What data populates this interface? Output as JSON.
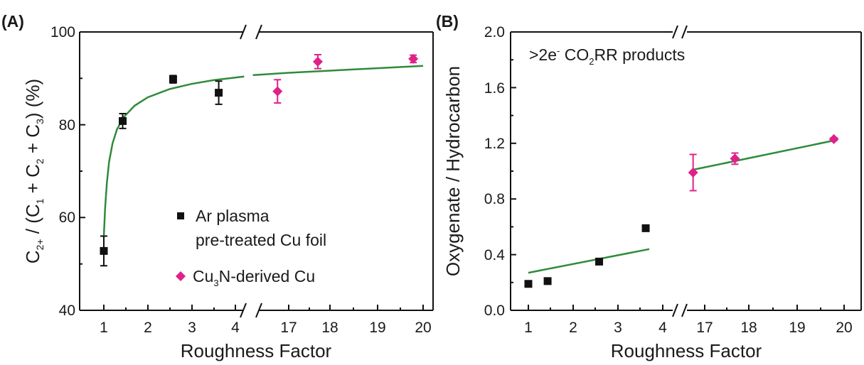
{
  "chart_data": [
    {
      "panel": "(A)",
      "type": "scatter",
      "xlabel": "Roughness Factor",
      "ylabel": "C2+ / (C1 + C2 + C3)  (%)",
      "ylabel_parts": [
        "C",
        "2+",
        " / (C",
        "1",
        " + C",
        "2",
        " + C",
        "3",
        ")  (%)"
      ],
      "x_axis_broken": true,
      "x_segments": [
        {
          "xlim": [
            0.6,
            4.25
          ],
          "ticks": [
            "1",
            "2",
            "3",
            "4"
          ]
        },
        {
          "xlim": [
            16.2,
            20.3
          ],
          "ticks": [
            "17",
            "18",
            "19",
            "20"
          ]
        }
      ],
      "ylim": [
        40,
        100
      ],
      "yticks": [
        "40",
        "60",
        "80",
        "100"
      ],
      "series": [
        {
          "name": "Ar plasma pre-treated Cu foil",
          "color": "#111111",
          "marker": "square",
          "points": [
            {
              "x": 1.0,
              "y": 52.8,
              "err": 3.2
            },
            {
              "x": 1.43,
              "y": 80.8,
              "err": 1.6
            },
            {
              "x": 2.58,
              "y": 89.8,
              "err": 0.8
            },
            {
              "x": 3.62,
              "y": 86.9,
              "err": 2.5
            }
          ]
        },
        {
          "name": "Cu3N-derived Cu",
          "color": "#e0218a",
          "marker": "diamond",
          "points": [
            {
              "x": 16.75,
              "y": 87.2,
              "err": 2.5
            },
            {
              "x": 17.65,
              "y": 93.6,
              "err": 1.5
            },
            {
              "x": 19.78,
              "y": 94.2,
              "err": 0.8
            }
          ]
        }
      ],
      "fit": {
        "color": "#2e8b3a",
        "seg1": [
          [
            1.0,
            55.9
          ],
          [
            1.03,
            62.0
          ],
          [
            1.07,
            67.5
          ],
          [
            1.12,
            72.0
          ],
          [
            1.2,
            76.0
          ],
          [
            1.3,
            79.0
          ],
          [
            1.45,
            81.6
          ],
          [
            1.7,
            84.1
          ],
          [
            2.0,
            85.9
          ],
          [
            2.5,
            87.7
          ],
          [
            3.0,
            88.8
          ],
          [
            3.5,
            89.6
          ],
          [
            4.2,
            90.4
          ]
        ],
        "seg2": [
          [
            16.2,
            90.7
          ],
          [
            17.0,
            91.2
          ],
          [
            18.0,
            91.7
          ],
          [
            19.0,
            92.2
          ],
          [
            20.0,
            92.7
          ]
        ]
      },
      "legend": {
        "line1": "Ar plasma",
        "line2": "pre-treated Cu foil",
        "cu_label_parts": [
          "Cu",
          "3",
          "N-derived Cu"
        ]
      }
    },
    {
      "panel": "(B)",
      "type": "scatter",
      "xlabel": "Roughness Factor",
      "ylabel": "Oxygenate / Hydrocarbon",
      "x_axis_broken": true,
      "x_segments": [
        {
          "xlim": [
            0.6,
            4.25
          ],
          "ticks": [
            "1",
            "2",
            "3",
            "4"
          ]
        },
        {
          "xlim": [
            16.2,
            20.3
          ],
          "ticks": [
            "17",
            "18",
            "19",
            "20"
          ]
        }
      ],
      "ylim": [
        0.0,
        2.0
      ],
      "yticks": [
        "0.0",
        "0.4",
        "0.8",
        "1.2",
        "1.6",
        "2.0"
      ],
      "annotation_parts": [
        ">2e",
        "-",
        " CO",
        "2",
        "RR products"
      ],
      "series": [
        {
          "name": "Ar plasma pre-treated Cu foil",
          "color": "#111111",
          "marker": "square",
          "points": [
            {
              "x": 1.0,
              "y": 0.19,
              "err": 0
            },
            {
              "x": 1.43,
              "y": 0.21,
              "err": 0
            },
            {
              "x": 2.58,
              "y": 0.35,
              "err": 0.02
            },
            {
              "x": 3.62,
              "y": 0.59,
              "err": 0
            }
          ]
        },
        {
          "name": "Cu3N-derived Cu",
          "color": "#e0218a",
          "marker": "diamond",
          "points": [
            {
              "x": 16.75,
              "y": 0.99,
              "err": 0.13
            },
            {
              "x": 17.65,
              "y": 1.09,
              "err": 0.04
            },
            {
              "x": 19.78,
              "y": 1.23,
              "err": 0.01
            }
          ]
        }
      ],
      "fit": {
        "color": "#2e8b3a",
        "seg1": [
          [
            1.0,
            0.27
          ],
          [
            3.7,
            0.44
          ]
        ],
        "seg2": [
          [
            16.75,
            1.01
          ],
          [
            19.78,
            1.22
          ]
        ]
      }
    }
  ]
}
